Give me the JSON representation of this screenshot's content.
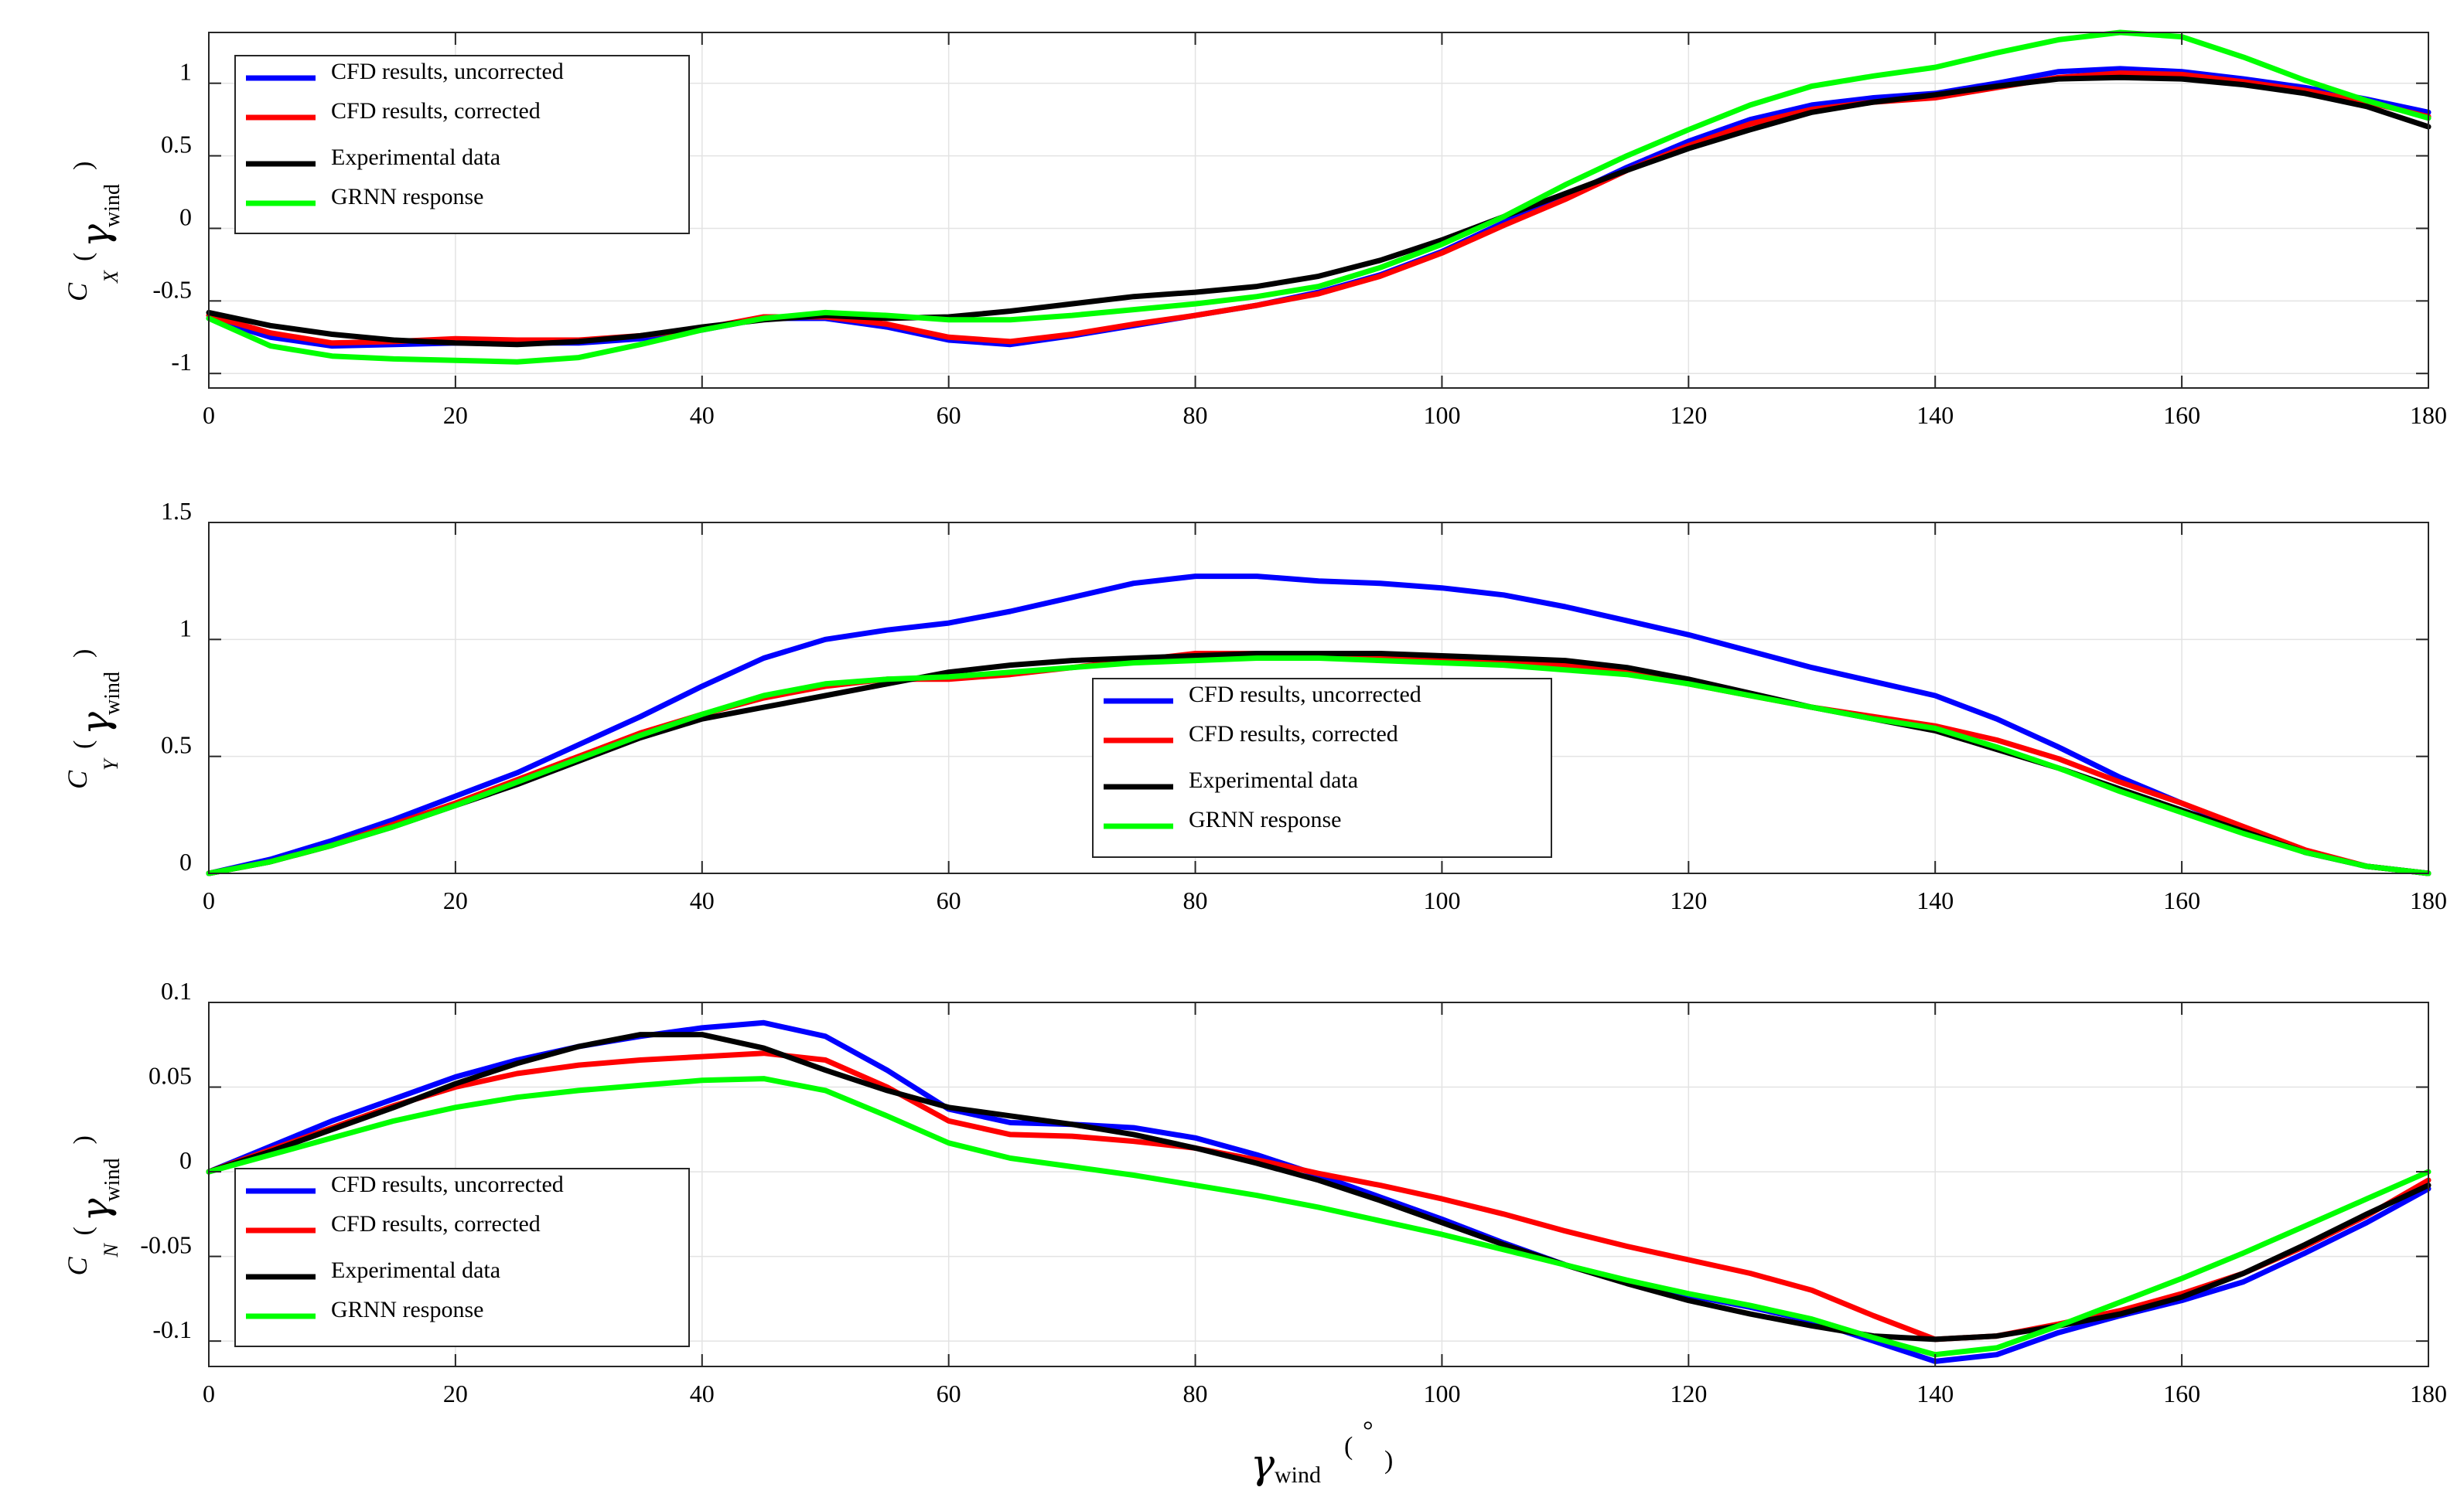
{
  "xlabel": {
    "symbol": "γ",
    "subscript": "wind",
    "open": "(",
    "unit": "°",
    "close": ")"
  },
  "legend_labels": [
    "CFD results, uncorrected",
    "CFD results, corrected",
    "Experimental data",
    "GRNN response"
  ],
  "chart_data": [
    {
      "type": "line",
      "id": "cx",
      "ylabel": {
        "main": "C",
        "sub": "X",
        "open": "(",
        "gamma": "γ",
        "wind": "wind",
        "close": ")"
      },
      "xlim": [
        0,
        180
      ],
      "ylim": [
        -1.1,
        1.35
      ],
      "xticks": [
        0,
        20,
        40,
        60,
        80,
        100,
        120,
        140,
        160,
        180
      ],
      "yticks": [
        -1,
        -0.5,
        0,
        0.5,
        1
      ],
      "ytick_labels": [
        "-1",
        "-0.5",
        "0",
        "0.5",
        "1"
      ],
      "legend_position": "top-left",
      "grid": true,
      "series": [
        {
          "name": "CFD results, uncorrected",
          "color": "#0000ff",
          "x": [
            0,
            5,
            10,
            15,
            20,
            25,
            30,
            35,
            40,
            45,
            50,
            55,
            60,
            65,
            70,
            75,
            80,
            85,
            90,
            95,
            100,
            105,
            110,
            115,
            120,
            125,
            130,
            135,
            140,
            145,
            150,
            155,
            160,
            165,
            170,
            175,
            180
          ],
          "y": [
            -0.62,
            -0.75,
            -0.81,
            -0.8,
            -0.79,
            -0.79,
            -0.79,
            -0.76,
            -0.7,
            -0.62,
            -0.62,
            -0.68,
            -0.77,
            -0.8,
            -0.74,
            -0.67,
            -0.6,
            -0.53,
            -0.44,
            -0.32,
            -0.16,
            0.04,
            0.22,
            0.42,
            0.6,
            0.75,
            0.85,
            0.9,
            0.93,
            1.0,
            1.08,
            1.1,
            1.08,
            1.03,
            0.97,
            0.89,
            0.8
          ]
        },
        {
          "name": "CFD results, corrected",
          "color": "#ff0000",
          "x": [
            0,
            5,
            10,
            15,
            20,
            25,
            30,
            35,
            40,
            45,
            50,
            55,
            60,
            65,
            70,
            75,
            80,
            85,
            90,
            95,
            100,
            105,
            110,
            115,
            120,
            125,
            130,
            135,
            140,
            145,
            150,
            155,
            160,
            165,
            170,
            175,
            180
          ],
          "y": [
            -0.6,
            -0.72,
            -0.79,
            -0.78,
            -0.76,
            -0.77,
            -0.77,
            -0.74,
            -0.69,
            -0.61,
            -0.61,
            -0.66,
            -0.75,
            -0.78,
            -0.73,
            -0.66,
            -0.6,
            -0.53,
            -0.45,
            -0.33,
            -0.17,
            0.02,
            0.2,
            0.4,
            0.57,
            0.72,
            0.82,
            0.87,
            0.9,
            0.97,
            1.04,
            1.07,
            1.06,
            1.01,
            0.95,
            0.87,
            0.77
          ]
        },
        {
          "name": "Experimental data",
          "color": "#000000",
          "x": [
            0,
            5,
            10,
            15,
            20,
            25,
            30,
            35,
            40,
            45,
            50,
            55,
            60,
            65,
            70,
            75,
            80,
            85,
            90,
            95,
            100,
            105,
            110,
            115,
            120,
            125,
            130,
            135,
            140,
            145,
            150,
            155,
            160,
            165,
            170,
            175,
            180
          ],
          "y": [
            -0.58,
            -0.67,
            -0.73,
            -0.77,
            -0.79,
            -0.8,
            -0.78,
            -0.74,
            -0.68,
            -0.63,
            -0.6,
            -0.62,
            -0.61,
            -0.57,
            -0.52,
            -0.47,
            -0.44,
            -0.4,
            -0.33,
            -0.22,
            -0.08,
            0.08,
            0.24,
            0.4,
            0.55,
            0.68,
            0.8,
            0.87,
            0.92,
            0.98,
            1.03,
            1.04,
            1.03,
            0.99,
            0.93,
            0.84,
            0.7
          ]
        },
        {
          "name": "GRNN response",
          "color": "#00ff00",
          "x": [
            0,
            5,
            10,
            15,
            20,
            25,
            30,
            35,
            40,
            45,
            50,
            55,
            60,
            65,
            70,
            75,
            80,
            85,
            90,
            95,
            100,
            105,
            110,
            115,
            120,
            125,
            130,
            135,
            140,
            145,
            150,
            155,
            160,
            165,
            170,
            175,
            180
          ],
          "y": [
            -0.62,
            -0.81,
            -0.88,
            -0.9,
            -0.91,
            -0.92,
            -0.89,
            -0.8,
            -0.7,
            -0.62,
            -0.58,
            -0.6,
            -0.63,
            -0.63,
            -0.6,
            -0.56,
            -0.52,
            -0.47,
            -0.4,
            -0.27,
            -0.11,
            0.08,
            0.3,
            0.5,
            0.68,
            0.85,
            0.98,
            1.05,
            1.11,
            1.21,
            1.3,
            1.35,
            1.32,
            1.18,
            1.02,
            0.88,
            0.76
          ]
        }
      ]
    },
    {
      "type": "line",
      "id": "cy",
      "ylabel": {
        "main": "C",
        "sub": "Y",
        "open": "(",
        "gamma": "γ",
        "wind": "wind",
        "close": ")"
      },
      "xlim": [
        0,
        180
      ],
      "ylim": [
        0,
        1.5
      ],
      "xticks": [
        0,
        20,
        40,
        60,
        80,
        100,
        120,
        140,
        160,
        180
      ],
      "yticks": [
        0,
        0.5,
        1,
        1.5
      ],
      "ytick_labels": [
        "0",
        "0.5",
        "1",
        "1.5"
      ],
      "legend_position": "center",
      "grid": true,
      "series": [
        {
          "name": "CFD results, uncorrected",
          "color": "#0000ff",
          "x": [
            0,
            5,
            10,
            15,
            20,
            25,
            30,
            35,
            40,
            45,
            50,
            55,
            60,
            65,
            70,
            75,
            80,
            85,
            90,
            95,
            100,
            105,
            110,
            115,
            120,
            125,
            130,
            135,
            140,
            145,
            150,
            155,
            160,
            165,
            170,
            175,
            180
          ],
          "y": [
            0,
            0.06,
            0.14,
            0.23,
            0.33,
            0.43,
            0.55,
            0.67,
            0.8,
            0.92,
            1.0,
            1.04,
            1.07,
            1.12,
            1.18,
            1.24,
            1.27,
            1.27,
            1.25,
            1.24,
            1.22,
            1.19,
            1.14,
            1.08,
            1.02,
            0.95,
            0.88,
            0.82,
            0.76,
            0.66,
            0.54,
            0.41,
            0.3,
            0.19,
            0.09,
            0.03,
            0.0
          ]
        },
        {
          "name": "CFD results, corrected",
          "color": "#ff0000",
          "x": [
            0,
            5,
            10,
            15,
            20,
            25,
            30,
            35,
            40,
            45,
            50,
            55,
            60,
            65,
            70,
            75,
            80,
            85,
            90,
            95,
            100,
            105,
            110,
            115,
            120,
            125,
            130,
            135,
            140,
            145,
            150,
            155,
            160,
            165,
            170,
            175,
            180
          ],
          "y": [
            0,
            0.05,
            0.12,
            0.21,
            0.3,
            0.4,
            0.5,
            0.6,
            0.68,
            0.75,
            0.8,
            0.83,
            0.83,
            0.85,
            0.88,
            0.91,
            0.94,
            0.94,
            0.94,
            0.93,
            0.92,
            0.91,
            0.89,
            0.86,
            0.81,
            0.76,
            0.71,
            0.67,
            0.63,
            0.57,
            0.49,
            0.39,
            0.3,
            0.2,
            0.1,
            0.03,
            0.0
          ]
        },
        {
          "name": "Experimental data",
          "color": "#000000",
          "x": [
            0,
            5,
            10,
            15,
            20,
            25,
            30,
            35,
            40,
            45,
            50,
            55,
            60,
            65,
            70,
            75,
            80,
            85,
            90,
            95,
            100,
            105,
            110,
            115,
            120,
            125,
            130,
            135,
            140,
            145,
            150,
            155,
            160,
            165,
            170,
            175,
            180
          ],
          "y": [
            0,
            0.05,
            0.12,
            0.2,
            0.29,
            0.38,
            0.48,
            0.58,
            0.66,
            0.71,
            0.76,
            0.81,
            0.86,
            0.89,
            0.91,
            0.92,
            0.93,
            0.94,
            0.94,
            0.94,
            0.93,
            0.92,
            0.91,
            0.88,
            0.83,
            0.77,
            0.71,
            0.66,
            0.61,
            0.53,
            0.45,
            0.36,
            0.27,
            0.18,
            0.09,
            0.03,
            0.0
          ]
        },
        {
          "name": "GRNN response",
          "color": "#00ff00",
          "x": [
            0,
            5,
            10,
            15,
            20,
            25,
            30,
            35,
            40,
            45,
            50,
            55,
            60,
            65,
            70,
            75,
            80,
            85,
            90,
            95,
            100,
            105,
            110,
            115,
            120,
            125,
            130,
            135,
            140,
            145,
            150,
            155,
            160,
            165,
            170,
            175,
            180
          ],
          "y": [
            0,
            0.05,
            0.12,
            0.2,
            0.29,
            0.39,
            0.49,
            0.59,
            0.68,
            0.76,
            0.81,
            0.83,
            0.84,
            0.86,
            0.88,
            0.9,
            0.91,
            0.92,
            0.92,
            0.91,
            0.9,
            0.89,
            0.87,
            0.85,
            0.81,
            0.76,
            0.71,
            0.66,
            0.62,
            0.54,
            0.45,
            0.35,
            0.26,
            0.17,
            0.09,
            0.03,
            0.0
          ]
        }
      ]
    },
    {
      "type": "line",
      "id": "cn",
      "ylabel": {
        "main": "C",
        "sub": "N",
        "open": "(",
        "gamma": "γ",
        "wind": "wind",
        "close": ")"
      },
      "xlim": [
        0,
        180
      ],
      "ylim": [
        -0.115,
        0.1
      ],
      "xticks": [
        0,
        20,
        40,
        60,
        80,
        100,
        120,
        140,
        160,
        180
      ],
      "yticks": [
        -0.1,
        -0.05,
        0,
        0.05,
        0.1
      ],
      "ytick_labels": [
        "-0.1",
        "-0.05",
        "0",
        "0.05",
        "0.1"
      ],
      "legend_position": "bottom-left",
      "grid": true,
      "series": [
        {
          "name": "CFD results, uncorrected",
          "color": "#0000ff",
          "x": [
            0,
            5,
            10,
            15,
            20,
            25,
            30,
            35,
            40,
            45,
            50,
            55,
            60,
            65,
            70,
            75,
            80,
            85,
            90,
            95,
            100,
            105,
            110,
            115,
            120,
            125,
            130,
            135,
            140,
            145,
            150,
            155,
            160,
            165,
            170,
            175,
            180
          ],
          "y": [
            0,
            0.015,
            0.03,
            0.043,
            0.056,
            0.066,
            0.074,
            0.08,
            0.085,
            0.088,
            0.08,
            0.06,
            0.037,
            0.029,
            0.028,
            0.026,
            0.02,
            0.01,
            -0.002,
            -0.015,
            -0.028,
            -0.042,
            -0.055,
            -0.065,
            -0.073,
            -0.08,
            -0.088,
            -0.1,
            -0.112,
            -0.108,
            -0.095,
            -0.085,
            -0.076,
            -0.065,
            -0.048,
            -0.03,
            -0.01
          ]
        },
        {
          "name": "CFD results, corrected",
          "color": "#ff0000",
          "x": [
            0,
            5,
            10,
            15,
            20,
            25,
            30,
            35,
            40,
            45,
            50,
            55,
            60,
            65,
            70,
            75,
            80,
            85,
            90,
            95,
            100,
            105,
            110,
            115,
            120,
            125,
            130,
            135,
            140,
            145,
            150,
            155,
            160,
            165,
            170,
            175,
            180
          ],
          "y": [
            0,
            0.013,
            0.026,
            0.039,
            0.05,
            0.058,
            0.063,
            0.066,
            0.068,
            0.07,
            0.066,
            0.05,
            0.03,
            0.022,
            0.021,
            0.018,
            0.014,
            0.007,
            -0.001,
            -0.008,
            -0.016,
            -0.025,
            -0.035,
            -0.044,
            -0.052,
            -0.06,
            -0.07,
            -0.085,
            -0.099,
            -0.097,
            -0.09,
            -0.082,
            -0.072,
            -0.06,
            -0.044,
            -0.026,
            -0.005
          ]
        },
        {
          "name": "Experimental data",
          "color": "#000000",
          "x": [
            0,
            5,
            10,
            15,
            20,
            25,
            30,
            35,
            40,
            45,
            50,
            55,
            60,
            65,
            70,
            75,
            80,
            85,
            90,
            95,
            100,
            105,
            110,
            115,
            120,
            125,
            130,
            135,
            140,
            145,
            150,
            155,
            160,
            165,
            170,
            175,
            180
          ],
          "y": [
            0,
            0.012,
            0.025,
            0.038,
            0.052,
            0.064,
            0.074,
            0.081,
            0.081,
            0.073,
            0.06,
            0.048,
            0.038,
            0.033,
            0.028,
            0.022,
            0.014,
            0.005,
            -0.005,
            -0.017,
            -0.03,
            -0.043,
            -0.055,
            -0.066,
            -0.076,
            -0.084,
            -0.091,
            -0.097,
            -0.099,
            -0.097,
            -0.091,
            -0.084,
            -0.074,
            -0.06,
            -0.043,
            -0.025,
            -0.008
          ]
        },
        {
          "name": "GRNN response",
          "color": "#00ff00",
          "x": [
            0,
            5,
            10,
            15,
            20,
            25,
            30,
            35,
            40,
            45,
            50,
            55,
            60,
            65,
            70,
            75,
            80,
            85,
            90,
            95,
            100,
            105,
            110,
            115,
            120,
            125,
            130,
            135,
            140,
            145,
            150,
            155,
            160,
            165,
            170,
            175,
            180
          ],
          "y": [
            0,
            0.01,
            0.02,
            0.03,
            0.038,
            0.044,
            0.048,
            0.051,
            0.054,
            0.055,
            0.048,
            0.033,
            0.017,
            0.008,
            0.003,
            -0.002,
            -0.008,
            -0.014,
            -0.021,
            -0.029,
            -0.037,
            -0.046,
            -0.055,
            -0.064,
            -0.072,
            -0.079,
            -0.087,
            -0.098,
            -0.108,
            -0.104,
            -0.091,
            -0.077,
            -0.063,
            -0.048,
            -0.032,
            -0.016,
            0.0
          ]
        }
      ]
    }
  ]
}
